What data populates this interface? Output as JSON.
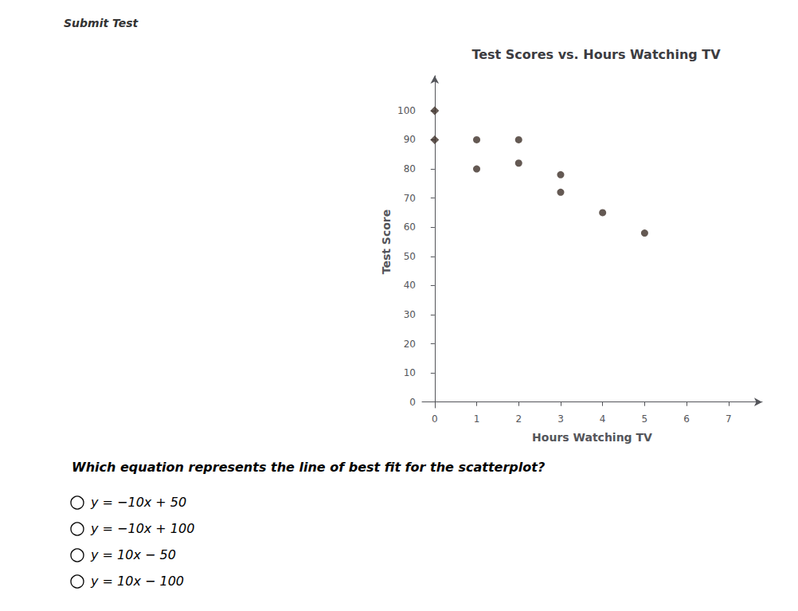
{
  "chart_data": {
    "type": "scatter",
    "title": "Test Scores vs. Hours Watching TV",
    "xlabel": "Hours Watching TV",
    "ylabel": "Test Score",
    "series": [
      {
        "x": [
          1,
          2,
          1,
          2,
          3,
          3,
          4,
          5
        ],
        "values": [
          90,
          90,
          80,
          82,
          78,
          72,
          65,
          58
        ],
        "marker": "circle",
        "color": "#3d3028"
      },
      {
        "x": [
          0,
          0
        ],
        "values": [
          100,
          90
        ],
        "marker": "diamond",
        "color": "#3d3028"
      }
    ],
    "xlim": [
      -0.3,
      7.8
    ],
    "ylim": [
      -2,
      112
    ],
    "xticks": [
      0,
      1,
      2,
      3,
      4,
      5,
      6,
      7
    ],
    "yticks": [
      0,
      10,
      20,
      30,
      40,
      50,
      60,
      70,
      80,
      90,
      100
    ],
    "grid": false,
    "annotations": [
      "Submit Test",
      "Which equation represents the line of best fit for the scatterplot?",
      "y = −10x + 50",
      "y = −10x + 100",
      "y = 10x − 50",
      "y = 10x − 100"
    ]
  }
}
